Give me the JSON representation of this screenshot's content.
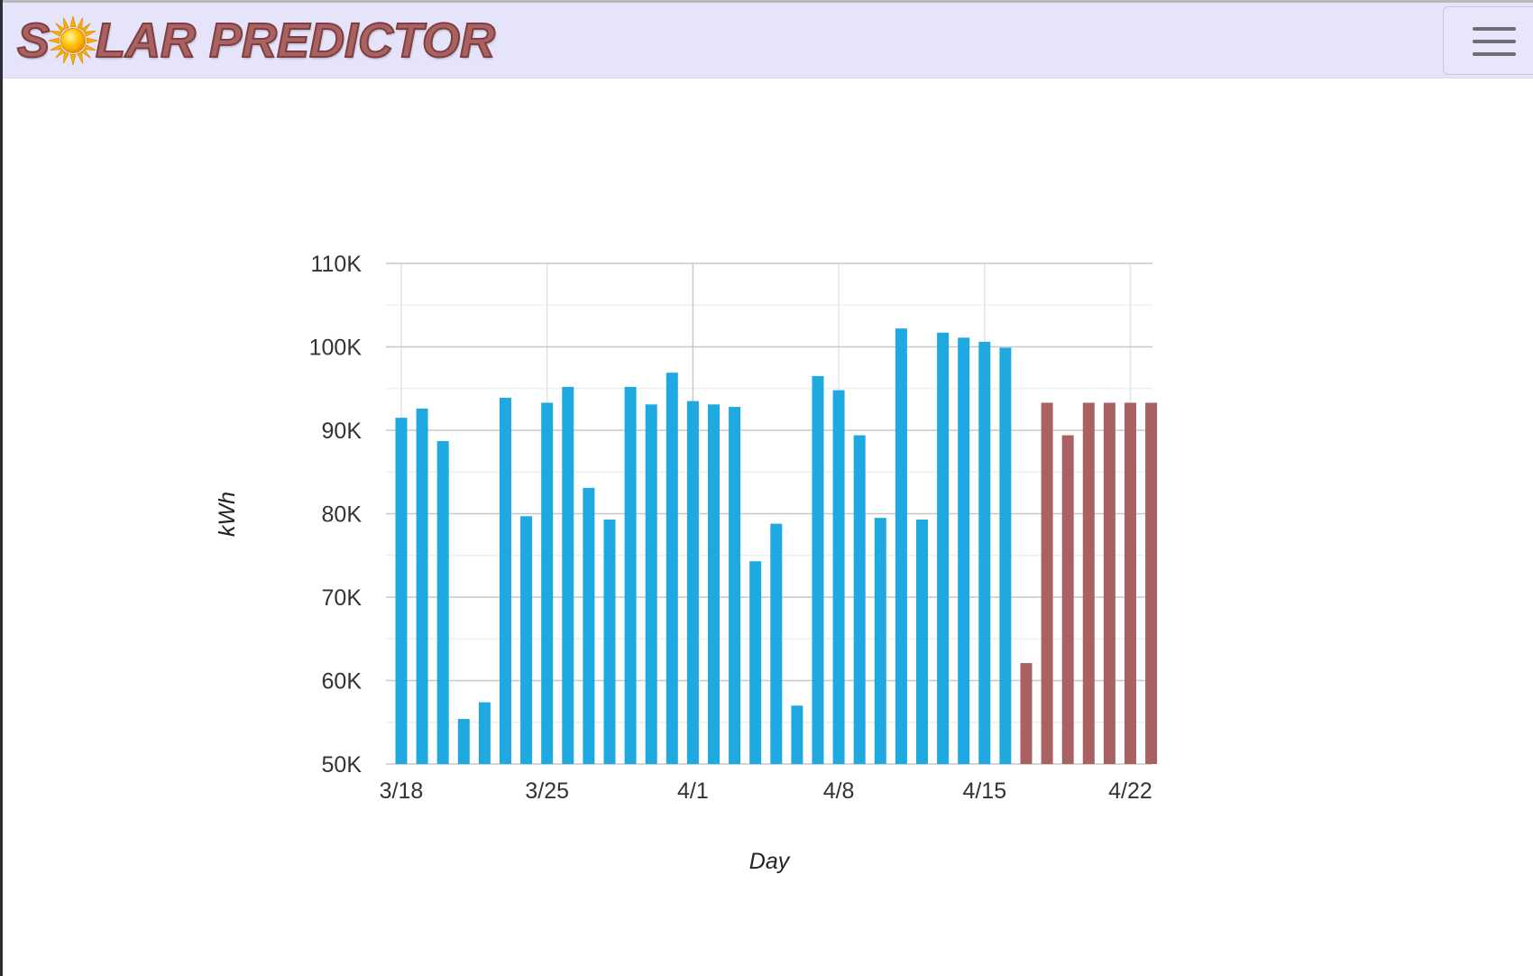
{
  "app": {
    "brand_parts": [
      "S",
      "LAR PREDICTOR"
    ],
    "brand_full": "SOLAR PREDICTOR",
    "icons": {
      "logo_sun": "sun-icon",
      "menu": "hamburger-menu-icon"
    }
  },
  "colors": {
    "navbar_bg": "#e6e4fb",
    "brand": "#a96161",
    "actual_bar": "#1fa9e1",
    "predicted_bar": "#a96161",
    "gridline": "#cccccc"
  },
  "chart_data": {
    "type": "bar",
    "xlabel": "Day",
    "ylabel": "kWh",
    "ylim": [
      50000,
      110000
    ],
    "y_ticks": [
      {
        "value": 50000,
        "label": "50K"
      },
      {
        "value": 60000,
        "label": "60K"
      },
      {
        "value": 70000,
        "label": "70K"
      },
      {
        "value": 80000,
        "label": "80K"
      },
      {
        "value": 90000,
        "label": "90K"
      },
      {
        "value": 100000,
        "label": "100K"
      },
      {
        "value": 110000,
        "label": "110K"
      }
    ],
    "x_ticks": [
      "3/18",
      "3/25",
      "4/1",
      "4/8",
      "4/15",
      "4/22"
    ],
    "grid": true,
    "legend": "none",
    "series": [
      {
        "color": "#1fa9e1",
        "points": [
          {
            "x": "3/18",
            "y": 91500
          },
          {
            "x": "3/19",
            "y": 92600
          },
          {
            "x": "3/20",
            "y": 88700
          },
          {
            "x": "3/21",
            "y": 55400
          },
          {
            "x": "3/22",
            "y": 57400
          },
          {
            "x": "3/23",
            "y": 93900
          },
          {
            "x": "3/24",
            "y": 79700
          },
          {
            "x": "3/25",
            "y": 93300
          },
          {
            "x": "3/26",
            "y": 95200
          },
          {
            "x": "3/27",
            "y": 83100
          },
          {
            "x": "3/28",
            "y": 79300
          },
          {
            "x": "3/29",
            "y": 95200
          },
          {
            "x": "3/30",
            "y": 93100
          },
          {
            "x": "3/31",
            "y": 96900
          },
          {
            "x": "4/1",
            "y": 93500
          },
          {
            "x": "4/2",
            "y": 93100
          },
          {
            "x": "4/3",
            "y": 92800
          },
          {
            "x": "4/4",
            "y": 74300
          },
          {
            "x": "4/5",
            "y": 78800
          },
          {
            "x": "4/6",
            "y": 57000
          },
          {
            "x": "4/7",
            "y": 96500
          },
          {
            "x": "4/8",
            "y": 94800
          },
          {
            "x": "4/9",
            "y": 89400
          },
          {
            "x": "4/10",
            "y": 79500
          },
          {
            "x": "4/11",
            "y": 102200
          },
          {
            "x": "4/12",
            "y": 79300
          },
          {
            "x": "4/13",
            "y": 101700
          },
          {
            "x": "4/14",
            "y": 101100
          },
          {
            "x": "4/15",
            "y": 100600
          },
          {
            "x": "4/16",
            "y": 99900
          }
        ]
      },
      {
        "color": "#a96161",
        "points": [
          {
            "x": "4/17",
            "y": 62100
          },
          {
            "x": "4/18",
            "y": 93300
          },
          {
            "x": "4/19",
            "y": 89400
          },
          {
            "x": "4/20",
            "y": 93300
          },
          {
            "x": "4/21",
            "y": 93300
          },
          {
            "x": "4/22",
            "y": 93300
          },
          {
            "x": "4/23",
            "y": 93300
          }
        ]
      }
    ]
  }
}
